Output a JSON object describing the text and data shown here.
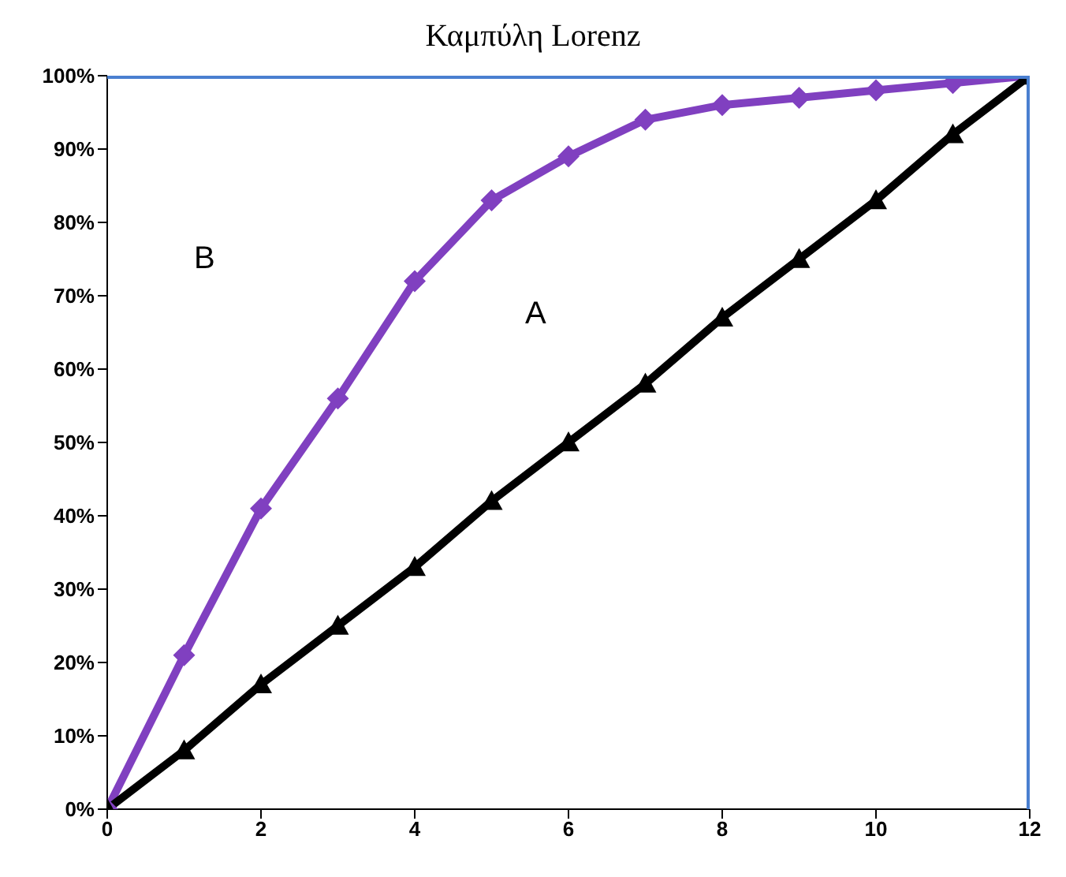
{
  "chart_data": {
    "type": "line",
    "title": "Καμπύλη Lorenz",
    "x": [
      0,
      1,
      2,
      3,
      4,
      5,
      6,
      7,
      8,
      9,
      10,
      11,
      12
    ],
    "xlim": [
      0,
      12
    ],
    "xticks": [
      0,
      2,
      4,
      6,
      8,
      10,
      12
    ],
    "ylim": [
      0,
      100
    ],
    "yticks": [
      {
        "value": 0,
        "label": "0%"
      },
      {
        "value": 10,
        "label": "10%"
      },
      {
        "value": 20,
        "label": "20%"
      },
      {
        "value": 30,
        "label": "30%"
      },
      {
        "value": 40,
        "label": "40%"
      },
      {
        "value": 50,
        "label": "50%"
      },
      {
        "value": 60,
        "label": "60%"
      },
      {
        "value": 70,
        "label": "70%"
      },
      {
        "value": 80,
        "label": "80%"
      },
      {
        "value": 90,
        "label": "90%"
      },
      {
        "value": 100,
        "label": "100%"
      }
    ],
    "series": [
      {
        "color": "#8040c0",
        "marker": "diamond",
        "values": [
          0,
          21,
          41,
          56,
          72,
          83,
          89,
          94,
          96,
          97,
          98,
          99,
          100
        ]
      },
      {
        "color": "#000000",
        "marker": "triangle",
        "values": [
          0,
          8,
          17,
          25,
          33,
          42,
          50,
          58,
          67,
          75,
          83,
          92,
          100
        ]
      }
    ],
    "annotations": [
      "B",
      "A"
    ],
    "grid": false,
    "legend": false,
    "line_style": "solid"
  }
}
